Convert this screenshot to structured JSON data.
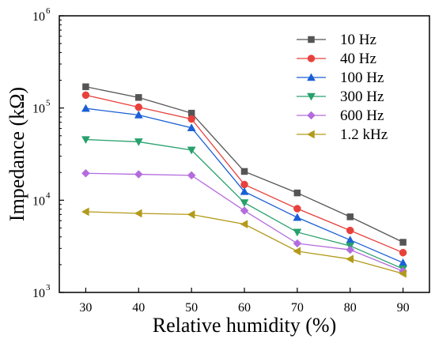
{
  "chart_data": {
    "type": "line",
    "xlabel": "Relative humidity (%)",
    "ylabel": "Impedance (kΩ)",
    "yscale": "log",
    "x": [
      30,
      40,
      50,
      60,
      70,
      80,
      90
    ],
    "xticks": [
      30,
      40,
      50,
      60,
      70,
      80,
      90
    ],
    "xlim": [
      25,
      95
    ],
    "ylim": [
      1000,
      1000000
    ],
    "yticks": [
      {
        "base": "10",
        "exp": "3",
        "value": 1000
      },
      {
        "base": "10",
        "exp": "4",
        "value": 10000
      },
      {
        "base": "10",
        "exp": "5",
        "value": 100000
      },
      {
        "base": "10",
        "exp": "6",
        "value": 1000000
      }
    ],
    "grid": false,
    "legend_position": "top-right",
    "series": [
      {
        "name": "10 Hz",
        "color": "#555555",
        "marker": "square",
        "values": [
          170000,
          130000,
          88000,
          20500,
          12000,
          6600,
          3500
        ]
      },
      {
        "name": "40 Hz",
        "color": "#e8413c",
        "marker": "circle",
        "values": [
          138000,
          102000,
          76000,
          14800,
          8100,
          4700,
          2700
        ]
      },
      {
        "name": "100 Hz",
        "color": "#1a5fd6",
        "marker": "triangle-up",
        "values": [
          99000,
          84000,
          61000,
          12400,
          6500,
          3700,
          2100
        ]
      },
      {
        "name": "300 Hz",
        "color": "#27a06c",
        "marker": "triangle-down",
        "values": [
          45500,
          43000,
          35000,
          9400,
          4500,
          3200,
          1800
        ]
      },
      {
        "name": "600 Hz",
        "color": "#b36cde",
        "marker": "diamond",
        "values": [
          19600,
          19100,
          18600,
          7700,
          3400,
          2900,
          1700
        ]
      },
      {
        "name": "1.2 kHz",
        "color": "#b39a1a",
        "marker": "triangle-left",
        "values": [
          7500,
          7200,
          7000,
          5500,
          2800,
          2300,
          1600
        ]
      }
    ]
  }
}
